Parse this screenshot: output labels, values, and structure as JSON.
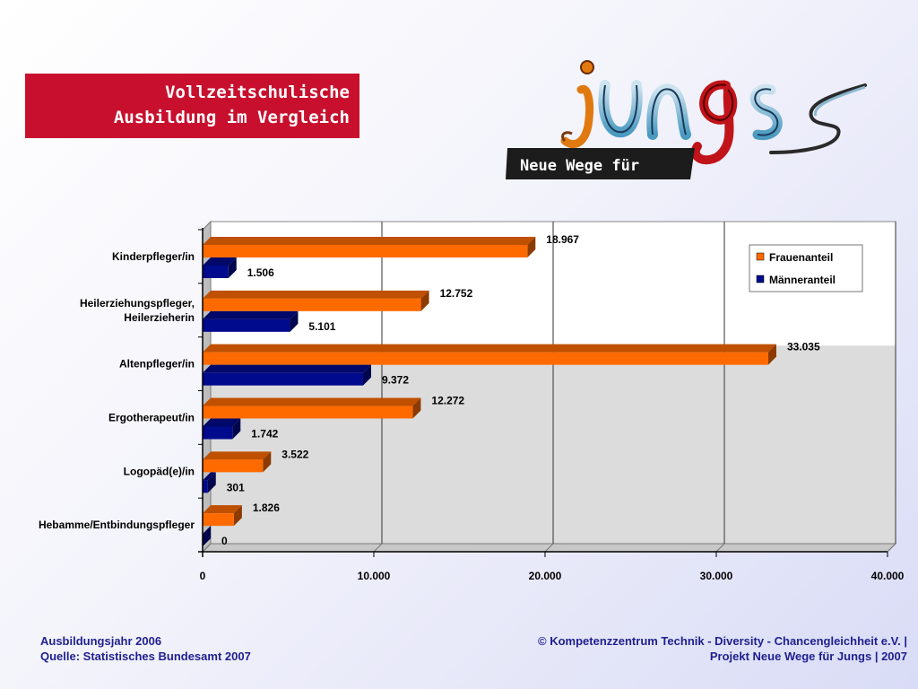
{
  "title": {
    "line1": "Vollzeitschulische",
    "line2": "Ausbildung im Vergleich"
  },
  "logo": {
    "wordmark": "jungs",
    "tagline": "Neue Wege für"
  },
  "footer": {
    "left_line1": "Ausbildungsjahr 2006",
    "left_line2": "Quelle: Statistisches Bundesamt 2007",
    "right_line1": "© Kompetenzzentrum Technik - Diversity - Chancengleichheit e.V. |",
    "right_line2": "Projekt Neue Wege für Jungs | 2007"
  },
  "colors": {
    "women": "#ff6a00",
    "men": "#000a8c",
    "title_bg": "#c8102e",
    "footer_text": "#1f1f8f"
  },
  "chart_data": {
    "type": "bar",
    "orientation": "horizontal",
    "categories": [
      [
        "Kinderpfleger/in"
      ],
      [
        "Heilerziehungspfleger,",
        "Heilerzieherin"
      ],
      [
        "Altenpfleger/in"
      ],
      [
        "Ergotherapeut/in"
      ],
      [
        "Logopäd(e)/in"
      ],
      [
        "Hebamme/Entbindungspfleger"
      ]
    ],
    "series": [
      {
        "name": "Frauenanteil",
        "values": [
          18967,
          12752,
          33035,
          12272,
          3522,
          1826
        ],
        "labels": [
          "18.967",
          "12.752",
          "33.035",
          "12.272",
          "3.522",
          "1.826"
        ]
      },
      {
        "name": "Männeranteil",
        "values": [
          1506,
          5101,
          9372,
          1742,
          301,
          0
        ],
        "labels": [
          "1.506",
          "5.101",
          "9.372",
          "1.742",
          "301",
          "0"
        ]
      }
    ],
    "xlim": [
      0,
      40000
    ],
    "ticks": [
      0,
      10000,
      20000,
      30000,
      40000
    ],
    "tick_labels": [
      "0",
      "10.000",
      "20.000",
      "30.000",
      "40.000"
    ],
    "grid": true,
    "legend_position": "top-right",
    "style": "3d"
  }
}
